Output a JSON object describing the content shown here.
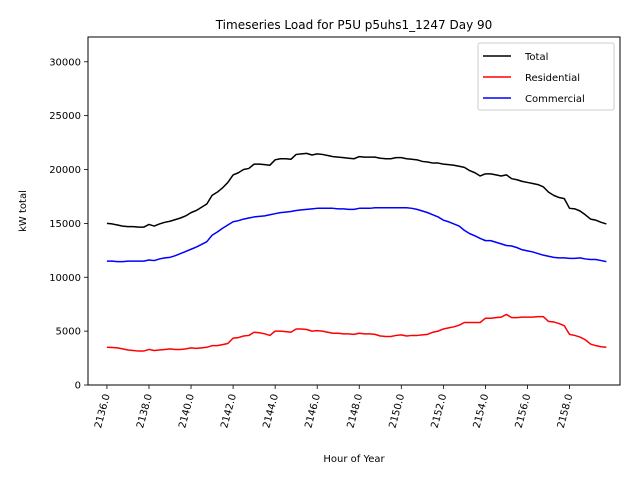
{
  "chart_data": {
    "type": "line",
    "title": "Timeseries Load for P5U p5uhs1_1247  Day 90",
    "xlabel": "Hour of Year",
    "ylabel": "kW total",
    "xlim": [
      2135.1,
      2160.4
    ],
    "ylim": [
      0,
      32300
    ],
    "xticks": [
      2136,
      2138,
      2140,
      2142,
      2144,
      2146,
      2148,
      2150,
      2152,
      2154,
      2156,
      2158
    ],
    "xtick_labels": [
      "2136.0",
      "2138.0",
      "2140.0",
      "2142.0",
      "2144.0",
      "2146.0",
      "2148.0",
      "2150.0",
      "2152.0",
      "2154.0",
      "2156.0",
      "2158.0"
    ],
    "yticks": [
      0,
      5000,
      10000,
      15000,
      20000,
      25000,
      30000
    ],
    "ytick_labels": [
      "0",
      "5000",
      "10000",
      "15000",
      "20000",
      "25000",
      "30000"
    ],
    "legend_position": "top-right",
    "x": [
      2136.0,
      2136.25,
      2136.5,
      2136.75,
      2137.0,
      2137.25,
      2137.5,
      2137.75,
      2138.0,
      2138.25,
      2138.5,
      2138.75,
      2139.0,
      2139.25,
      2139.5,
      2139.75,
      2140.0,
      2140.25,
      2140.5,
      2140.75,
      2141.0,
      2141.25,
      2141.5,
      2141.75,
      2142.0,
      2142.25,
      2142.5,
      2142.75,
      2143.0,
      2143.25,
      2143.5,
      2143.75,
      2144.0,
      2144.25,
      2144.5,
      2144.75,
      2145.0,
      2145.25,
      2145.5,
      2145.75,
      2146.0,
      2146.25,
      2146.5,
      2146.75,
      2147.0,
      2147.25,
      2147.5,
      2147.75,
      2148.0,
      2148.25,
      2148.5,
      2148.75,
      2149.0,
      2149.25,
      2149.5,
      2149.75,
      2150.0,
      2150.25,
      2150.5,
      2150.75,
      2151.0,
      2151.25,
      2151.5,
      2151.75,
      2152.0,
      2152.25,
      2152.5,
      2152.75,
      2153.0,
      2153.25,
      2153.5,
      2153.75,
      2154.0,
      2154.25,
      2154.5,
      2154.75,
      2155.0,
      2155.25,
      2155.5,
      2155.75,
      2156.0,
      2156.25,
      2156.5,
      2156.75,
      2157.0,
      2157.25,
      2157.5,
      2157.75,
      2158.0,
      2158.25,
      2158.5,
      2158.75,
      2159.0,
      2159.25,
      2159.5,
      2159.75
    ],
    "series": [
      {
        "name": "Total",
        "color": "#000000",
        "values": [
          15000,
          14950,
          14850,
          14750,
          14700,
          14700,
          14650,
          14650,
          14900,
          14750,
          14950,
          15100,
          15200,
          15350,
          15500,
          15700,
          16000,
          16200,
          16500,
          16800,
          17600,
          17900,
          18300,
          18800,
          19500,
          19700,
          20000,
          20100,
          20500,
          20500,
          20450,
          20400,
          20900,
          21000,
          21000,
          20950,
          21400,
          21450,
          21500,
          21350,
          21450,
          21400,
          21300,
          21200,
          21150,
          21100,
          21050,
          21000,
          21200,
          21150,
          21150,
          21150,
          21050,
          21000,
          21000,
          21100,
          21100,
          21000,
          20950,
          20900,
          20750,
          20700,
          20600,
          20600,
          20500,
          20450,
          20400,
          20300,
          20200,
          19900,
          19700,
          19400,
          19600,
          19600,
          19500,
          19400,
          19500,
          19150,
          19050,
          18900,
          18800,
          18700,
          18600,
          18400,
          17900,
          17600,
          17400,
          17300,
          16400,
          16350,
          16150,
          15800,
          15400,
          15300,
          15100,
          14950
        ]
      },
      {
        "name": "Residential",
        "color": "#ff0000",
        "values": [
          3500,
          3480,
          3450,
          3350,
          3250,
          3200,
          3150,
          3150,
          3300,
          3200,
          3250,
          3300,
          3350,
          3300,
          3300,
          3350,
          3450,
          3400,
          3450,
          3500,
          3650,
          3650,
          3750,
          3850,
          4350,
          4400,
          4550,
          4600,
          4900,
          4850,
          4750,
          4600,
          5000,
          5000,
          4950,
          4900,
          5200,
          5200,
          5150,
          5000,
          5050,
          5000,
          4900,
          4800,
          4800,
          4750,
          4750,
          4700,
          4800,
          4750,
          4750,
          4700,
          4550,
          4500,
          4500,
          4600,
          4650,
          4550,
          4600,
          4600,
          4650,
          4700,
          4900,
          5000,
          5200,
          5300,
          5400,
          5550,
          5800,
          5800,
          5800,
          5800,
          6200,
          6200,
          6250,
          6300,
          6550,
          6250,
          6250,
          6300,
          6300,
          6300,
          6350,
          6350,
          5900,
          5850,
          5700,
          5500,
          4700,
          4600,
          4450,
          4200,
          3800,
          3650,
          3550,
          3500
        ]
      },
      {
        "name": "Commercial",
        "color": "#0000ff",
        "values": [
          11500,
          11500,
          11450,
          11450,
          11500,
          11500,
          11500,
          11500,
          11600,
          11550,
          11700,
          11800,
          11850,
          12000,
          12200,
          12400,
          12600,
          12800,
          13050,
          13300,
          13900,
          14200,
          14550,
          14850,
          15150,
          15250,
          15400,
          15500,
          15600,
          15650,
          15700,
          15800,
          15900,
          16000,
          16050,
          16100,
          16200,
          16250,
          16300,
          16350,
          16400,
          16400,
          16400,
          16400,
          16350,
          16350,
          16300,
          16300,
          16400,
          16400,
          16400,
          16450,
          16450,
          16450,
          16450,
          16450,
          16450,
          16450,
          16400,
          16300,
          16150,
          16000,
          15800,
          15600,
          15300,
          15150,
          14950,
          14750,
          14350,
          14050,
          13850,
          13600,
          13400,
          13400,
          13250,
          13100,
          12950,
          12900,
          12750,
          12550,
          12450,
          12350,
          12200,
          12050,
          11950,
          11850,
          11800,
          11800,
          11750,
          11750,
          11800,
          11700,
          11650,
          11650,
          11550,
          11450
        ]
      }
    ]
  }
}
